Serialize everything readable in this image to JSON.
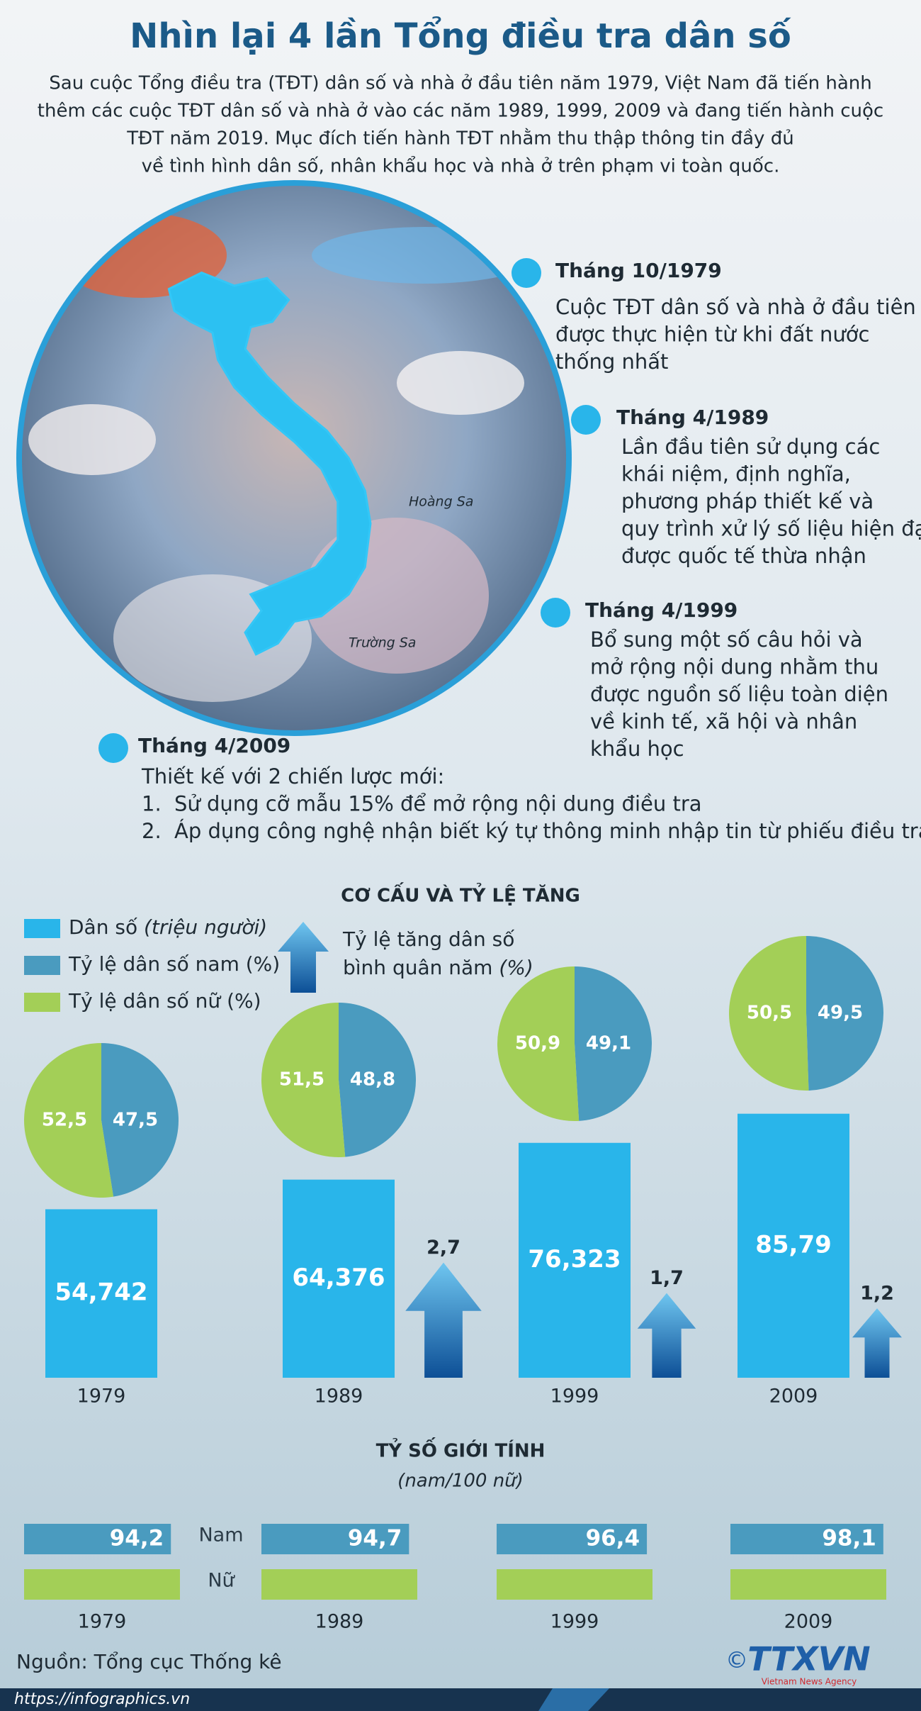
{
  "header": {
    "title": "Nhìn lại 4 lần Tổng điều tra dân số",
    "intro": [
      "Sau cuộc Tổng điều tra (TĐT) dân số và nhà ở đầu tiên năm 1979, Việt Nam đã tiến hành",
      "thêm các cuộc TĐT dân số và nhà ở vào các năm 1989, 1999, 2009 và đang tiến hành cuộc",
      "TĐT năm 2019. Mục đích tiến hành TĐT nhằm thu thập thông tin đầy đủ",
      "về tình hình dân số, nhân khẩu học và nhà ở trên phạm vi toàn quốc."
    ]
  },
  "map_labels": [
    "Hoàng Sa",
    "Trường Sa"
  ],
  "timeline": [
    {
      "date": "Tháng 10/1979",
      "lines": [
        "Cuộc TĐT dân số và nhà ở đầu tiên",
        "được thực hiện từ khi đất nước",
        "thống  nhất"
      ]
    },
    {
      "date": "Tháng 4/1989",
      "lines": [
        "Lần đầu tiên sử dụng các",
        "khái niệm, định nghĩa,",
        "phương pháp thiết kế và",
        "quy trình xử lý số liệu hiện đại",
        "được quốc tế thừa nhận"
      ]
    },
    {
      "date": "Tháng 4/1999",
      "lines": [
        "Bổ sung một số câu hỏi và",
        "mở rộng nội dung nhằm thu",
        "được nguồn số liệu toàn diện",
        "về kinh tế, xã hội và nhân",
        "khẩu học"
      ]
    },
    {
      "date": "Tháng 4/2009",
      "lines": [
        "Thiết kế với 2 chiến lược mới:"
      ],
      "items": [
        {
          "marker": "1.",
          "text": "Sử dụng cỡ mẫu 15% để mở rộng nội dung điều tra"
        },
        {
          "marker": "2.",
          "text": "Áp dụng công nghệ nhận biết ký tự thông minh nhập tin từ phiếu điều tra"
        }
      ]
    }
  ],
  "chart_data": [
    {
      "type": "bar",
      "title": "CƠ CẤU VÀ TỶ LỆ TĂNG",
      "categories": [
        "1979",
        "1989",
        "1999",
        "2009"
      ],
      "series": [
        {
          "name": "Dân số",
          "unit": "(triệu người)",
          "color": "#29b5ea",
          "values": [
            54.742,
            64.376,
            76.323,
            85.79
          ],
          "value_labels": [
            "54,742",
            "64,376",
            "76,323",
            "85,79"
          ]
        }
      ]
    },
    {
      "type": "pie",
      "series": [
        {
          "name": "Tỷ lệ dân số nam (%)",
          "color": "#4a9bbf",
          "values": [
            47.5,
            48.8,
            49.1,
            49.5
          ],
          "value_labels": [
            "47,5",
            "48,8",
            "49,1",
            "49,5"
          ]
        },
        {
          "name": "Tỷ lệ dân số nữ (%)",
          "color": "#a3cf57",
          "values": [
            52.5,
            51.5,
            50.9,
            50.5
          ],
          "value_labels": [
            "52,5",
            "51,5",
            "50,9",
            "50,5"
          ]
        }
      ]
    },
    {
      "type": "arrow",
      "series": [
        {
          "name": "Tỷ lệ tăng dân số bình quân năm",
          "unit": "(%)",
          "color": "#1f7fc8",
          "values": [
            2.7,
            1.7,
            1.2
          ],
          "value_labels": [
            "2,7",
            "1,7",
            "1,2"
          ]
        }
      ]
    },
    {
      "type": "hbar",
      "title": "TỶ SỐ GIỚI TÍNH",
      "subtitle": "(nam/100 nữ)",
      "categories": [
        "1979",
        "1989",
        "1999",
        "2009"
      ],
      "series": [
        {
          "name": "Nam",
          "color": "#4a9bbf",
          "values": [
            94.2,
            94.7,
            96.4,
            98.1
          ],
          "value_labels": [
            "94,2",
            "94,7",
            "96,4",
            "98,1"
          ]
        },
        {
          "name": "Nữ",
          "color": "#a3cf57",
          "values": [
            100,
            100,
            100,
            100
          ]
        }
      ]
    }
  ],
  "footer": {
    "source": "Nguồn: Tổng cục Thống kê",
    "url": "https://infographics.vn",
    "copyright": "©",
    "logo": "TTXVN",
    "logo_sub": "Vietnam News Agency"
  }
}
